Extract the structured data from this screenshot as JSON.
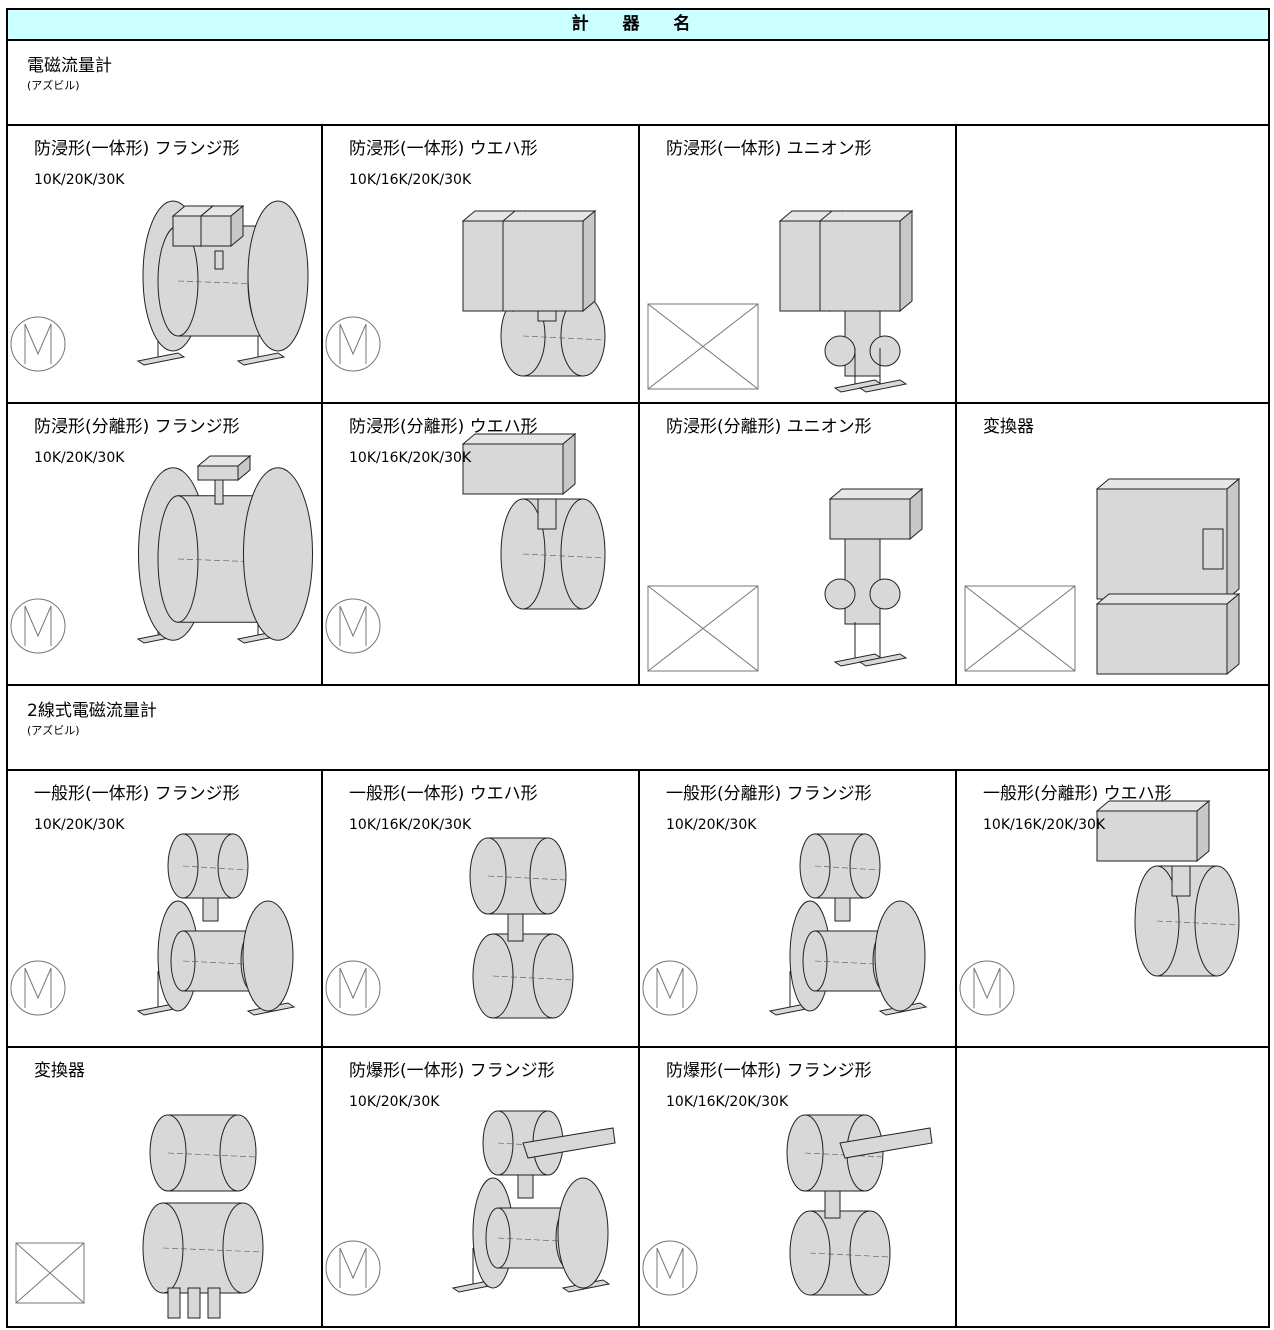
{
  "header": {
    "title": "計 器 名"
  },
  "sections": [
    {
      "title": "電磁流量計",
      "maker": "(アズビル)",
      "rows": [
        [
          {
            "title": "防浸形(一体形) フランジ形",
            "spec": "10K/20K/30K"
          },
          {
            "title": "防浸形(一体形) ウエハ形",
            "spec": "10K/16K/20K/30K"
          },
          {
            "title": "防浸形(一体形) ユニオン形"
          }
        ],
        [
          {
            "title": "防浸形(分離形) フランジ形",
            "spec": "10K/20K/30K"
          },
          {
            "title": "防浸形(分離形) ウエハ形",
            "spec": "10K/16K/20K/30K"
          },
          {
            "title": "防浸形(分離形) ユニオン形"
          },
          {
            "title": "変換器"
          }
        ]
      ]
    },
    {
      "title": "2線式電磁流量計",
      "maker": "(アズビル)",
      "rows": [
        [
          {
            "title": "一般形(一体形) フランジ形",
            "spec": "10K/20K/30K"
          },
          {
            "title": "一般形(一体形) ウエハ形",
            "spec": "10K/16K/20K/30K"
          },
          {
            "title": "一般形(分離形) フランジ形",
            "spec": "10K/20K/30K"
          },
          {
            "title": "一般形(分離形) ウエハ形",
            "spec": "10K/16K/20K/30K"
          }
        ],
        [
          {
            "title": "変換器"
          },
          {
            "title": "防爆形(一体形) フランジ形",
            "spec": "10K/20K/30K"
          },
          {
            "title": "防爆形(一体形) フランジ形",
            "spec": "10K/16K/20K/30K"
          }
        ]
      ]
    }
  ]
}
